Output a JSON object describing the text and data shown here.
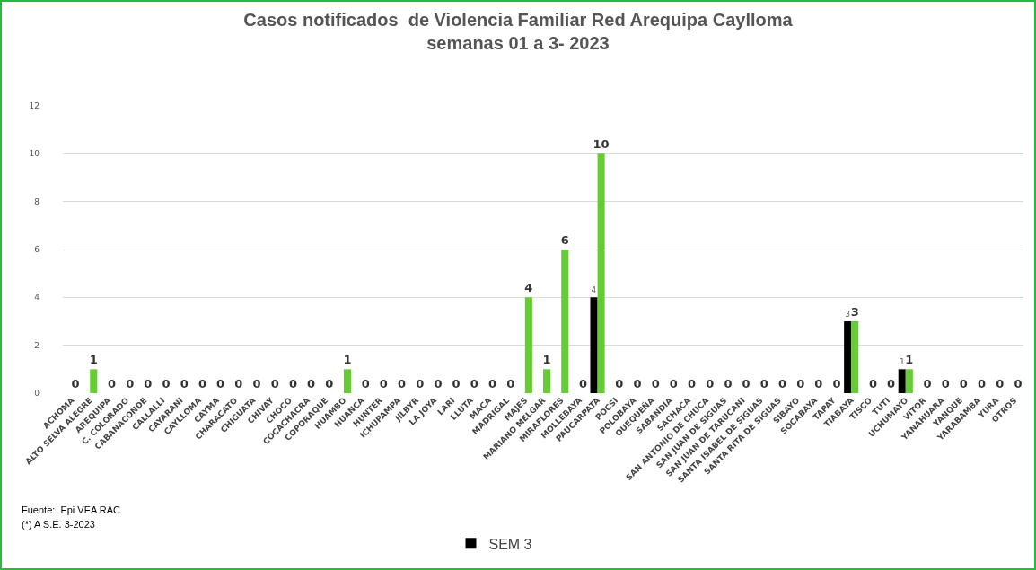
{
  "chart_data": {
    "type": "bar",
    "title": "Casos notificados  de Violencia Familiar Red Arequipa Caylloma\nsemanas 01 a 3- 2023",
    "categories": [
      "ACHOMA",
      "ALTO SELVA ALEGRE",
      "AREQUIPA",
      "C. COLORADO",
      "CABANACONDE",
      "CALLALLI",
      "CAYARANI",
      "CAYLLOMA",
      "CAYMA",
      "CHARACATO",
      "CHIGUATA",
      "CHIVAY",
      "CHOCO",
      "COCACHACRA",
      "COPORAQUE",
      "HUAMBO",
      "HUANCA",
      "HUNTER",
      "ICHUPAMPA",
      "JILBYR",
      "LA JOYA",
      "LARI",
      "LLUTA",
      "MACA",
      "MADRIGAL",
      "MAJES",
      "MARIANO MELGAR",
      "MIRAFLORES",
      "MOLLEBAYA",
      "PAUCARPATA",
      "POCSI",
      "POLOBAYA",
      "QUEQUEÑA",
      "SABANDIA",
      "SACHACA",
      "SAN ANTONIO DE CHUCA",
      "SAN JUAN DE SIGUAS",
      "SAN JUAN DE TARUCANI",
      "SANTA ISABEL DE SIGUAS",
      "SANTA RITA DE SIGUAS",
      "SIBAYO",
      "SOCABAYA",
      "TAPAY",
      "TIABAYA",
      "TISCO",
      "TUTI",
      "UCHUMAYO",
      "VITOR",
      "YANAHUARA",
      "YANQUE",
      "YARABAMBA",
      "YURA",
      "OTROS"
    ],
    "series": [
      {
        "name": "SEM 3",
        "color": "#000000",
        "values": [
          null,
          null,
          null,
          null,
          null,
          null,
          null,
          null,
          null,
          null,
          null,
          null,
          null,
          null,
          null,
          null,
          null,
          null,
          null,
          null,
          null,
          null,
          null,
          null,
          null,
          null,
          null,
          null,
          null,
          4,
          null,
          null,
          null,
          null,
          null,
          null,
          null,
          null,
          null,
          null,
          null,
          null,
          null,
          3,
          null,
          null,
          1,
          null,
          null,
          null,
          null,
          null,
          null
        ],
        "value_labels": [
          null,
          null,
          null,
          null,
          null,
          null,
          null,
          null,
          null,
          null,
          null,
          null,
          null,
          null,
          null,
          null,
          null,
          null,
          null,
          null,
          null,
          null,
          null,
          null,
          null,
          null,
          null,
          null,
          null,
          "4",
          null,
          null,
          null,
          null,
          null,
          null,
          null,
          null,
          null,
          null,
          null,
          null,
          null,
          "3",
          null,
          null,
          "1",
          null,
          null,
          null,
          null,
          null,
          null
        ]
      },
      {
        "color": "#66cc33",
        "values": [
          0,
          1,
          0,
          0,
          0,
          0,
          0,
          0,
          0,
          0,
          0,
          0,
          0,
          0,
          0,
          1,
          0,
          0,
          0,
          0,
          0,
          0,
          0,
          0,
          0,
          4,
          1,
          6,
          0,
          10,
          0,
          0,
          0,
          0,
          0,
          0,
          0,
          0,
          0,
          0,
          0,
          0,
          0,
          3,
          0,
          0,
          1,
          0,
          0,
          0,
          0,
          0,
          0
        ],
        "value_labels": [
          "0",
          "1",
          "0",
          "0",
          "0",
          "0",
          "0",
          "0",
          "0",
          "0",
          "0",
          "0",
          "0",
          "0",
          "0",
          "1",
          "0",
          "0",
          "0",
          "0",
          "0",
          "0",
          "0",
          "0",
          "0",
          "4",
          "1",
          "6",
          "0",
          "10",
          "0",
          "0",
          "0",
          "0",
          "0",
          "0",
          "0",
          "0",
          "0",
          "0",
          "0",
          "0",
          "0",
          "3",
          "0",
          "0",
          "1",
          "0",
          "0",
          "0",
          "0",
          "0",
          "0"
        ]
      }
    ],
    "ylim": [
      0,
      12
    ],
    "yticks": [
      0,
      2,
      4,
      6,
      8,
      10,
      12
    ],
    "grid": "y",
    "legend": "bottom",
    "annotations": [
      "Fuente:  Epi VEA RAC",
      "(*) A S.E. 3-2023"
    ]
  }
}
